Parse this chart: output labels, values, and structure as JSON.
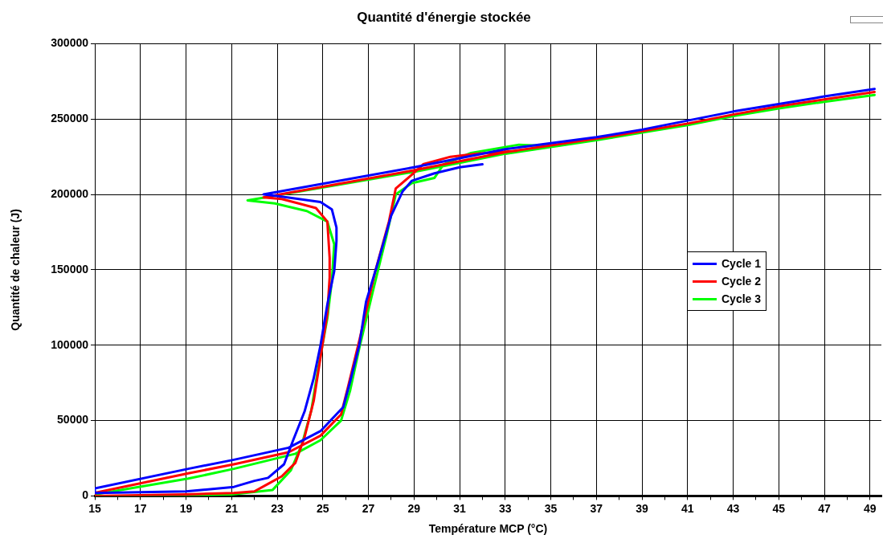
{
  "chart_data": {
    "type": "line",
    "title": "Quantité d'énergie stockée",
    "xlabel": "Température MCP (°C)",
    "ylabel": "Quantité de chaleur (J)",
    "xlim": [
      15,
      49.5
    ],
    "xticks": [
      15,
      {
        "value": 16,
        "label": null
      },
      17,
      {
        "value": 18,
        "label": null
      },
      19,
      {
        "value": 20,
        "label": null
      },
      21,
      {
        "value": 22,
        "label": null
      },
      23,
      {
        "value": 24,
        "label": null
      },
      25,
      {
        "value": 26,
        "label": null
      },
      27,
      {
        "value": 28,
        "label": null
      },
      29,
      {
        "value": 30,
        "label": null
      },
      31,
      {
        "value": 32,
        "label": null
      },
      33,
      {
        "value": 34,
        "label": null
      },
      35,
      {
        "value": 36,
        "label": null
      },
      37,
      {
        "value": 38,
        "label": null
      },
      39,
      {
        "value": 40,
        "label": null
      },
      41,
      {
        "value": 42,
        "label": null
      },
      43,
      {
        "value": 44,
        "label": null
      },
      45,
      {
        "value": 46,
        "label": null
      },
      47,
      {
        "value": 48,
        "label": null
      },
      49
    ],
    "ylim": [
      0,
      300000
    ],
    "yticks": [
      0,
      50000,
      100000,
      150000,
      200000,
      250000,
      300000
    ],
    "grid": true,
    "legend": "right",
    "marker": "none",
    "line_style": "solid",
    "series": [
      {
        "name": "Cycle 1",
        "color": "#0000ff",
        "x": [
          49.2,
          47,
          45,
          43,
          41,
          39,
          37,
          35,
          33,
          31,
          29,
          22.4,
          23,
          24.9,
          25.4,
          25.6,
          25.6,
          25.5,
          25.2,
          24.9,
          24.6,
          24.2,
          23.7,
          23.3,
          22.6,
          22,
          21.1,
          19,
          15,
          15,
          19.1,
          21.1,
          23.5,
          24.9,
          25.9,
          26.2,
          26.6,
          26.9,
          27.4,
          28,
          28.5,
          28.9,
          29.9,
          31,
          32
        ],
        "values": [
          270000,
          265000,
          260000,
          255000,
          249000,
          243000,
          238000,
          234000,
          230000,
          224000,
          218000,
          200000,
          199000,
          195000,
          190000,
          178000,
          169000,
          149000,
          127000,
          100000,
          78000,
          56000,
          37000,
          21000,
          12000,
          10000,
          6000,
          3000,
          2000,
          5000,
          18000,
          24000,
          32000,
          43000,
          59000,
          76000,
          100000,
          129000,
          154000,
          186000,
          202000,
          209000,
          214000,
          218000,
          220000
        ]
      },
      {
        "name": "Cycle 2",
        "color": "#ff0000",
        "x": [
          49.2,
          47,
          45,
          43,
          41,
          39,
          37,
          35,
          33,
          31,
          29,
          22.4,
          23.2,
          24.7,
          25.2,
          25.3,
          25.3,
          25.2,
          24.9,
          24.6,
          24.2,
          23.8,
          23.2,
          22.6,
          22,
          21.1,
          19,
          15,
          15,
          19.1,
          21.1,
          23.5,
          24.9,
          25.8,
          26.1,
          26.6,
          27.3,
          27.9,
          28.2,
          28.9,
          29.4,
          30.6,
          31.7,
          33.5
        ],
        "values": [
          268000,
          263000,
          258500,
          253000,
          247000,
          242000,
          237000,
          232500,
          228000,
          222000,
          216000,
          198000,
          197000,
          191000,
          182000,
          158000,
          145000,
          121000,
          92000,
          63000,
          39000,
          22000,
          13000,
          8000,
          3000,
          2000,
          1000,
          0,
          2000,
          15000,
          21000,
          29000,
          40000,
          54000,
          72000,
          103000,
          149000,
          182000,
          204000,
          213000,
          220000,
          225000,
          227000,
          229000
        ]
      },
      {
        "name": "Cycle 3",
        "color": "#00ff00",
        "x": [
          49.2,
          47,
          45,
          43,
          41,
          39,
          37,
          35,
          33,
          31,
          29,
          21.7,
          22.9,
          24.3,
          25.2,
          25.5,
          25.4,
          25.2,
          24.8,
          24.5,
          24.1,
          23.6,
          22.8,
          21,
          19,
          15,
          15,
          19.1,
          21.1,
          23.8,
          24.9,
          25.8,
          26.2,
          26.6,
          27.2,
          27.8,
          28.2,
          28.9,
          29.9,
          30.3,
          31.5,
          33.6,
          35
        ],
        "values": [
          266000,
          261500,
          257000,
          252000,
          246000,
          241000,
          236000,
          231500,
          227000,
          221000,
          215000,
          196000,
          194000,
          189000,
          182000,
          167000,
          143000,
          118000,
          85000,
          57000,
          35000,
          17000,
          4000,
          1000,
          0,
          0,
          1000,
          11500,
          18000,
          28000,
          37000,
          50000,
          70000,
          98000,
          136000,
          173000,
          200000,
          207500,
          211000,
          220000,
          227500,
          233000,
          232000
        ]
      }
    ]
  }
}
